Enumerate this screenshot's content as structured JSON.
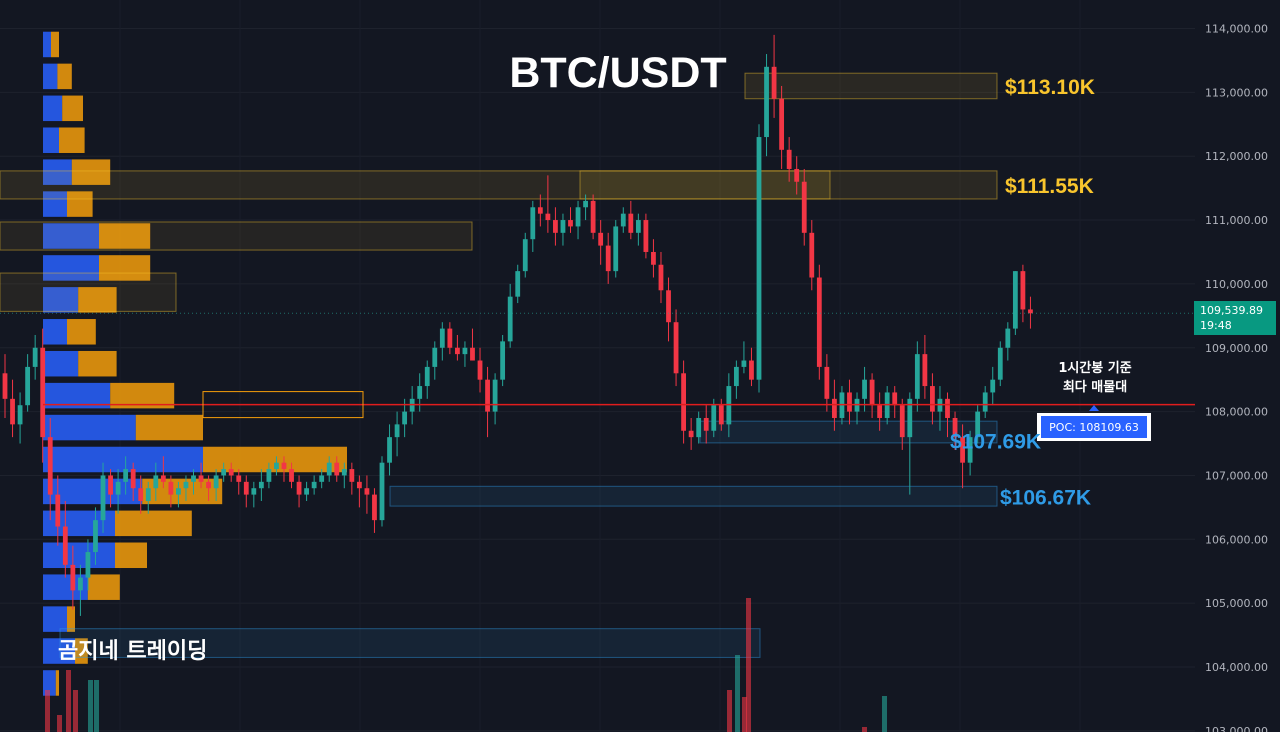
{
  "title": "BTC/USDT",
  "brand": "곰지네 트레이딩",
  "annotation": {
    "line1": "1시간봉 기준",
    "line2": "최다 매물대"
  },
  "current_price": {
    "price": "109,539.89",
    "countdown": "19:48"
  },
  "colors": {
    "up": "#26a69a",
    "down": "#f23645",
    "background": "#131722",
    "grid": "#1e222d",
    "resistance": "#f9c52d",
    "support": "#2f9be6",
    "poc": "#e11d1d",
    "vp_up": "#2962ff",
    "vp_down": "#f59e0b"
  },
  "chart_data": {
    "type": "candlestick",
    "title": "BTC/USDT",
    "ylim": [
      103000,
      114000
    ],
    "y_ticks": [
      "114,000.00",
      "113,000.00",
      "112,000.00",
      "111,000.00",
      "110,000.00",
      "109,000.00",
      "108,000.00",
      "107,000.00",
      "106,000.00",
      "105,000.00",
      "104,000.00",
      "103,000.00"
    ],
    "y_tick_values": [
      114000,
      113000,
      112000,
      111000,
      110000,
      109000,
      108000,
      107000,
      106000,
      105000,
      104000,
      103000
    ],
    "levels": [
      {
        "label": "$113.10K",
        "value": 113100,
        "kind": "resistance"
      },
      {
        "label": "$111.55K",
        "value": 111550,
        "kind": "resistance"
      },
      {
        "label": "$107.69K",
        "value": 107690,
        "kind": "support"
      },
      {
        "label": "$106.67K",
        "value": 106670,
        "kind": "support"
      }
    ],
    "poc": {
      "label": "POC: 108109.63",
      "value": 108109.63
    },
    "last_price": 109539.89,
    "candles": [
      [
        108600,
        108900,
        107900,
        108200
      ],
      [
        108200,
        108500,
        107600,
        107800
      ],
      [
        107800,
        108300,
        107500,
        108100
      ],
      [
        108100,
        108900,
        108000,
        108700
      ],
      [
        108700,
        109200,
        108500,
        109000
      ],
      [
        109000,
        109300,
        107200,
        107600
      ],
      [
        107600,
        107900,
        106300,
        106700
      ],
      [
        106700,
        107000,
        105900,
        106200
      ],
      [
        106200,
        106600,
        105400,
        105600
      ],
      [
        105600,
        105900,
        104900,
        105200
      ],
      [
        105200,
        105600,
        104800,
        105400
      ],
      [
        105400,
        106000,
        105200,
        105800
      ],
      [
        105800,
        106500,
        105600,
        106300
      ],
      [
        106300,
        107200,
        106100,
        107000
      ],
      [
        107000,
        107100,
        106500,
        106700
      ],
      [
        106700,
        107100,
        106400,
        106900
      ],
      [
        106900,
        107300,
        106700,
        107100
      ],
      [
        107100,
        107200,
        106600,
        106800
      ],
      [
        106800,
        107000,
        106400,
        106600
      ],
      [
        106600,
        106900,
        106400,
        106800
      ],
      [
        106800,
        107200,
        106600,
        107000
      ],
      [
        107000,
        107300,
        106800,
        106900
      ],
      [
        106900,
        107000,
        106500,
        106700
      ],
      [
        106700,
        106900,
        106500,
        106800
      ],
      [
        106800,
        107000,
        106600,
        106900
      ],
      [
        106900,
        107100,
        106700,
        107000
      ],
      [
        107000,
        107200,
        106800,
        106900
      ],
      [
        106900,
        107000,
        106600,
        106800
      ],
      [
        106800,
        107100,
        106600,
        107000
      ],
      [
        107000,
        107200,
        106900,
        107100
      ],
      [
        107100,
        107200,
        106900,
        107000
      ],
      [
        107000,
        107100,
        106700,
        106900
      ],
      [
        106900,
        107000,
        106500,
        106700
      ],
      [
        106700,
        106900,
        106500,
        106800
      ],
      [
        106800,
        107100,
        106600,
        106900
      ],
      [
        106900,
        107200,
        106800,
        107100
      ],
      [
        107100,
        107300,
        107000,
        107200
      ],
      [
        107200,
        107300,
        106900,
        107100
      ],
      [
        107100,
        107200,
        106800,
        106900
      ],
      [
        106900,
        107000,
        106500,
        106700
      ],
      [
        106700,
        106900,
        106600,
        106800
      ],
      [
        106800,
        107000,
        106700,
        106900
      ],
      [
        106900,
        107100,
        106800,
        107000
      ],
      [
        107000,
        107300,
        106900,
        107200
      ],
      [
        107200,
        107300,
        106900,
        107000
      ],
      [
        107000,
        107200,
        106800,
        107100
      ],
      [
        107100,
        107200,
        106700,
        106900
      ],
      [
        106900,
        107000,
        106500,
        106800
      ],
      [
        106800,
        107000,
        106400,
        106700
      ],
      [
        106700,
        106800,
        106100,
        106300
      ],
      [
        106300,
        107300,
        106200,
        107200
      ],
      [
        107200,
        107800,
        107000,
        107600
      ],
      [
        107600,
        108000,
        107300,
        107800
      ],
      [
        107800,
        108200,
        107600,
        108000
      ],
      [
        108000,
        108400,
        107800,
        108200
      ],
      [
        108200,
        108600,
        108000,
        108400
      ],
      [
        108400,
        108800,
        108200,
        108700
      ],
      [
        108700,
        109100,
        108500,
        109000
      ],
      [
        109000,
        109400,
        108800,
        109300
      ],
      [
        109300,
        109400,
        108900,
        109000
      ],
      [
        109000,
        109200,
        108800,
        108900
      ],
      [
        108900,
        109100,
        108700,
        109000
      ],
      [
        109000,
        109300,
        108800,
        108800
      ],
      [
        108800,
        109000,
        108300,
        108500
      ],
      [
        108500,
        108700,
        107600,
        108000
      ],
      [
        108000,
        108600,
        107800,
        108500
      ],
      [
        108500,
        109200,
        108400,
        109100
      ],
      [
        109100,
        110000,
        109000,
        109800
      ],
      [
        109800,
        110300,
        109700,
        110200
      ],
      [
        110200,
        110800,
        110100,
        110700
      ],
      [
        110700,
        111300,
        110500,
        111200
      ],
      [
        111200,
        111400,
        110900,
        111100
      ],
      [
        111100,
        111700,
        110800,
        111000
      ],
      [
        111000,
        111200,
        110600,
        110800
      ],
      [
        110800,
        111100,
        110600,
        111000
      ],
      [
        111000,
        111200,
        110800,
        110900
      ],
      [
        110900,
        111300,
        110700,
        111200
      ],
      [
        111200,
        111400,
        111000,
        111300
      ],
      [
        111300,
        111400,
        110700,
        110800
      ],
      [
        110800,
        111000,
        110300,
        110600
      ],
      [
        110600,
        110800,
        110000,
        110200
      ],
      [
        110200,
        111000,
        110100,
        110900
      ],
      [
        110900,
        111200,
        110800,
        111100
      ],
      [
        111100,
        111300,
        110700,
        110800
      ],
      [
        110800,
        111100,
        110600,
        111000
      ],
      [
        111000,
        111100,
        110400,
        110500
      ],
      [
        110500,
        110700,
        110100,
        110300
      ],
      [
        110300,
        110500,
        109700,
        109900
      ],
      [
        109900,
        110100,
        109100,
        109400
      ],
      [
        109400,
        109600,
        108400,
        108600
      ],
      [
        108600,
        108800,
        107500,
        107700
      ],
      [
        107700,
        107900,
        107400,
        107600
      ],
      [
        107600,
        108000,
        107500,
        107900
      ],
      [
        107900,
        108100,
        107500,
        107700
      ],
      [
        107700,
        108200,
        107600,
        108100
      ],
      [
        108100,
        108200,
        107700,
        107800
      ],
      [
        107800,
        108600,
        107600,
        108400
      ],
      [
        108400,
        108800,
        108200,
        108700
      ],
      [
        108700,
        109100,
        108600,
        108800
      ],
      [
        108800,
        109000,
        108400,
        108500
      ],
      [
        108500,
        112500,
        108300,
        112300
      ],
      [
        112300,
        113600,
        112000,
        113400
      ],
      [
        113400,
        113900,
        112600,
        112900
      ],
      [
        112900,
        113100,
        111800,
        112100
      ],
      [
        112100,
        112300,
        111600,
        111800
      ],
      [
        111800,
        112000,
        111400,
        111600
      ],
      [
        111600,
        111800,
        110600,
        110800
      ],
      [
        110800,
        111000,
        109900,
        110100
      ],
      [
        110100,
        110300,
        108500,
        108700
      ],
      [
        108700,
        108900,
        108000,
        108200
      ],
      [
        108200,
        108500,
        107700,
        107900
      ],
      [
        107900,
        108400,
        107800,
        108300
      ],
      [
        108300,
        108500,
        107800,
        108000
      ],
      [
        108000,
        108300,
        107800,
        108200
      ],
      [
        108200,
        108700,
        108000,
        108500
      ],
      [
        108500,
        108600,
        107900,
        108100
      ],
      [
        108100,
        108300,
        107700,
        107900
      ],
      [
        107900,
        108400,
        107800,
        108300
      ],
      [
        108300,
        108400,
        107900,
        108100
      ],
      [
        108100,
        108200,
        107400,
        107600
      ],
      [
        107600,
        108300,
        106700,
        108200
      ],
      [
        108200,
        109100,
        108000,
        108900
      ],
      [
        108900,
        109200,
        108200,
        108400
      ],
      [
        108400,
        108600,
        107800,
        108000
      ],
      [
        108000,
        108400,
        107700,
        108200
      ],
      [
        108200,
        108300,
        107600,
        107900
      ],
      [
        107900,
        108000,
        107400,
        107600
      ],
      [
        107600,
        107800,
        106800,
        107200
      ],
      [
        107200,
        107700,
        107000,
        107600
      ],
      [
        107600,
        108100,
        107500,
        108000
      ],
      [
        108000,
        108400,
        107900,
        108300
      ],
      [
        108300,
        108700,
        108100,
        108500
      ],
      [
        108500,
        109100,
        108400,
        109000
      ],
      [
        109000,
        109400,
        108800,
        109300
      ],
      [
        109300,
        110200,
        109200,
        110200
      ],
      [
        110200,
        110300,
        109400,
        109600
      ],
      [
        109600,
        109800,
        109300,
        109540
      ]
    ],
    "volume_profile": {
      "bins": [
        113750,
        113250,
        112750,
        112250,
        111750,
        111250,
        110750,
        110250,
        109750,
        109250,
        108750,
        108250,
        107750,
        107250,
        106750,
        106250,
        105750,
        105250,
        104750,
        104250,
        103750
      ],
      "up": [
        0.05,
        0.09,
        0.12,
        0.1,
        0.18,
        0.15,
        0.35,
        0.35,
        0.22,
        0.15,
        0.22,
        0.42,
        0.58,
        1.0,
        0.62,
        0.45,
        0.45,
        0.28,
        0.15,
        0.2,
        0.08
      ],
      "down": [
        0.05,
        0.09,
        0.13,
        0.16,
        0.24,
        0.16,
        0.32,
        0.32,
        0.24,
        0.18,
        0.24,
        0.4,
        0.42,
        0.9,
        0.5,
        0.48,
        0.2,
        0.2,
        0.05,
        0.08,
        0.02
      ]
    }
  }
}
